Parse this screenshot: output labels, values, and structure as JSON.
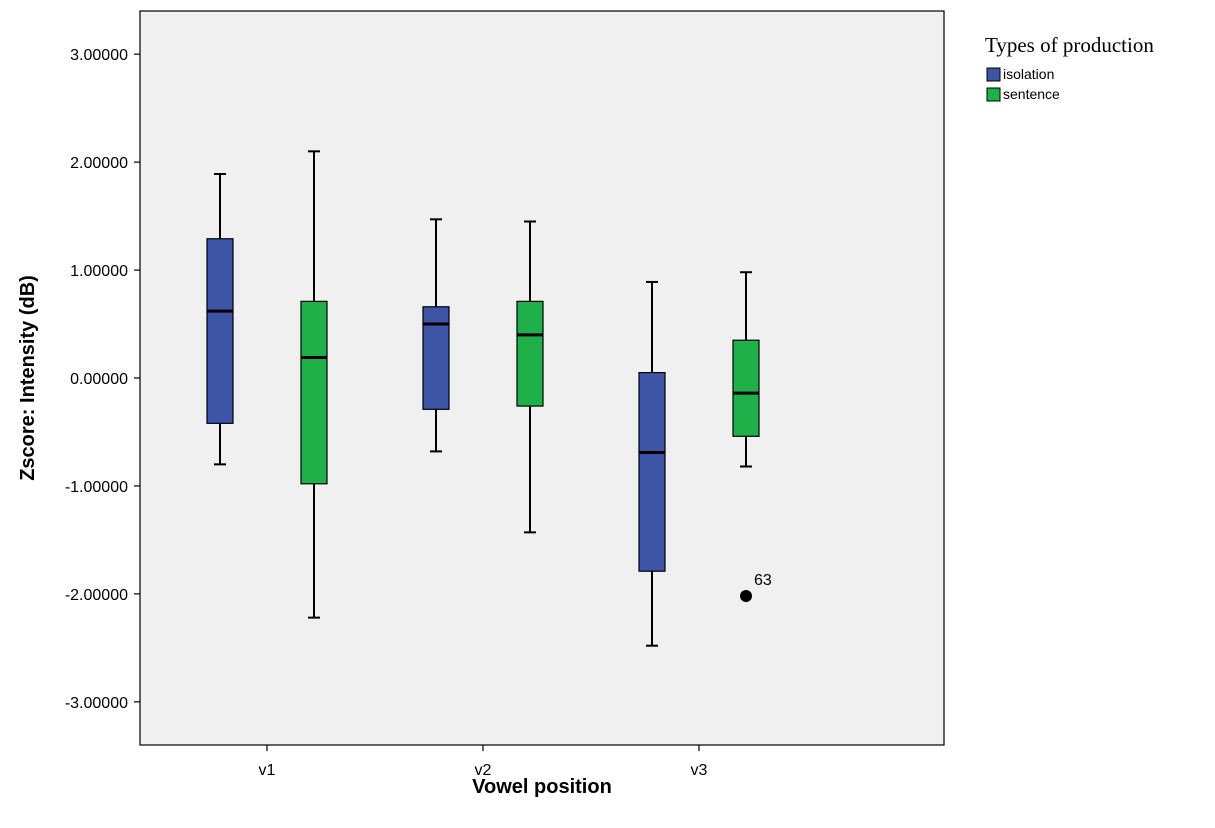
{
  "chart_data": {
    "type": "box",
    "xlabel": "Vowel position",
    "ylabel": "Zscore:  Intensity (dB)",
    "ylim": [
      -3.4,
      3.4
    ],
    "y_ticks": [
      {
        "value": 3,
        "label": "3.00000"
      },
      {
        "value": 2,
        "label": "2.00000"
      },
      {
        "value": 1,
        "label": "1.00000"
      },
      {
        "value": 0,
        "label": "0.00000"
      },
      {
        "value": -1,
        "label": "-1.00000"
      },
      {
        "value": -2,
        "label": "-2.00000"
      },
      {
        "value": -3,
        "label": "-3.00000"
      }
    ],
    "categories": [
      "v1",
      "v2",
      "v3"
    ],
    "legend": {
      "title": "Types of production",
      "placement": "top-right, outside plot"
    },
    "series": [
      {
        "name": "isolation",
        "color": "#3e54a6",
        "boxes": [
          {
            "category": "v1",
            "min": -0.8,
            "q1": -0.42,
            "median": 0.62,
            "q3": 1.29,
            "max": 1.89
          },
          {
            "category": "v2",
            "min": -0.68,
            "q1": -0.29,
            "median": 0.5,
            "q3": 0.66,
            "max": 1.47
          },
          {
            "category": "v3",
            "min": -2.48,
            "q1": -1.79,
            "median": -0.69,
            "q3": 0.05,
            "max": 0.89
          }
        ]
      },
      {
        "name": "sentence",
        "color": "#1fb04a",
        "boxes": [
          {
            "category": "v1",
            "min": -2.22,
            "q1": -0.98,
            "median": 0.19,
            "q3": 0.71,
            "max": 2.1
          },
          {
            "category": "v2",
            "min": -1.43,
            "q1": -0.26,
            "median": 0.4,
            "q3": 0.71,
            "max": 1.45
          },
          {
            "category": "v3",
            "min": -0.82,
            "q1": -0.54,
            "median": -0.14,
            "q3": 0.35,
            "max": 0.98
          }
        ]
      }
    ],
    "outliers": [
      {
        "series": "sentence",
        "category": "v3",
        "value": -2.02,
        "label": "63"
      }
    ],
    "plot_background": "#f0f0f0",
    "grid": false
  }
}
